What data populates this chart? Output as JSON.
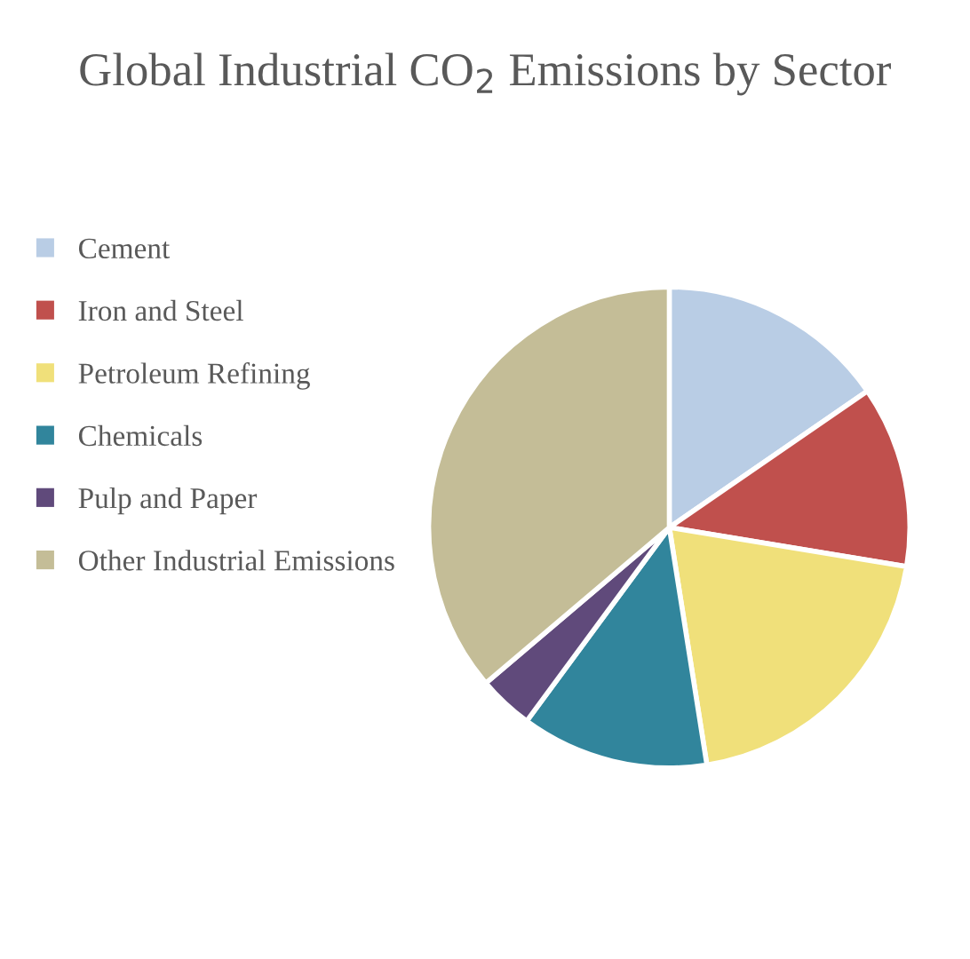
{
  "chart_data": {
    "type": "pie",
    "title": "Global Industrial CO$_{2}$ Emissions by Sector",
    "categories": [
      "Cement",
      "Iron and Steel",
      "Petroleum Refining",
      "Chemicals",
      "Pulp and Paper",
      "Other Industrial Emissions"
    ],
    "values": [
      15.4,
      12.2,
      19.9,
      12.6,
      3.7,
      36.2
    ],
    "colors": [
      "#b9cde5",
      "#c0504d",
      "#f0e07a",
      "#31859c",
      "#604a7b",
      "#c4bd97"
    ],
    "legend": "left"
  }
}
